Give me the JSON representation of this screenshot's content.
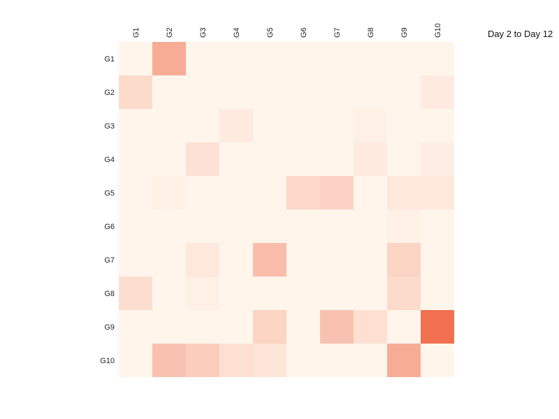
{
  "chart_data": {
    "type": "heatmap",
    "title": "",
    "xlabel": "",
    "ylabel": "",
    "legend": {
      "title": "Day 2 to Day 12",
      "placement": "top-right"
    },
    "x_categories": [
      "G1",
      "G2",
      "G3",
      "G4",
      "G5",
      "G6",
      "G7",
      "G8",
      "G9",
      "G10"
    ],
    "y_categories": [
      "G1",
      "G2",
      "G3",
      "G4",
      "G5",
      "G6",
      "G7",
      "G8",
      "G9",
      "G10"
    ],
    "x_axis_position": "top",
    "grid": false,
    "color_low": "#fff5eb",
    "color_high": "#f07050",
    "value_range": [
      0,
      1
    ],
    "values": [
      [
        0.0,
        0.55,
        0.0,
        0.0,
        0.0,
        0.0,
        0.0,
        0.0,
        0.0,
        0.0
      ],
      [
        0.2,
        0.0,
        0.0,
        0.0,
        0.0,
        0.0,
        0.0,
        0.0,
        0.0,
        0.08
      ],
      [
        0.0,
        0.0,
        0.0,
        0.08,
        0.0,
        0.0,
        0.01,
        0.04,
        0.0,
        0.0
      ],
      [
        0.0,
        0.0,
        0.15,
        0.0,
        0.0,
        0.0,
        0.0,
        0.08,
        0.0,
        0.06
      ],
      [
        0.0,
        0.03,
        0.0,
        0.0,
        0.0,
        0.22,
        0.26,
        0.0,
        0.1,
        0.1
      ],
      [
        0.0,
        0.0,
        0.0,
        0.0,
        0.01,
        0.0,
        0.0,
        0.0,
        0.04,
        0.0
      ],
      [
        0.0,
        0.0,
        0.1,
        0.0,
        0.42,
        0.0,
        0.0,
        0.0,
        0.25,
        0.0
      ],
      [
        0.17,
        0.0,
        0.04,
        0.0,
        0.0,
        0.0,
        0.0,
        0.0,
        0.2,
        0.0
      ],
      [
        0.0,
        0.0,
        0.0,
        0.0,
        0.25,
        0.0,
        0.38,
        0.16,
        0.0,
        1.0
      ],
      [
        0.0,
        0.38,
        0.3,
        0.16,
        0.12,
        0.0,
        0.0,
        0.0,
        0.55,
        0.0
      ]
    ]
  }
}
